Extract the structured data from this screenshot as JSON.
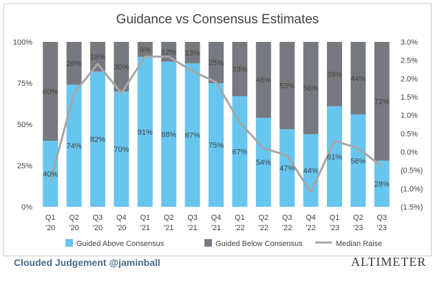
{
  "chart_data": {
    "type": "bar",
    "title": "Guidance vs Consensus Estimates",
    "categories": [
      [
        "Q1",
        "'20"
      ],
      [
        "Q2",
        "'20"
      ],
      [
        "Q3",
        "'20"
      ],
      [
        "Q4",
        "'20"
      ],
      [
        "Q1",
        "'21"
      ],
      [
        "Q2",
        "'21"
      ],
      [
        "Q3",
        "'21"
      ],
      [
        "Q4",
        "'21"
      ],
      [
        "Q1",
        "'22"
      ],
      [
        "Q2",
        "'22"
      ],
      [
        "Q3",
        "'22"
      ],
      [
        "Q4",
        "'22"
      ],
      [
        "Q1",
        "'23"
      ],
      [
        "Q2",
        "'23"
      ],
      [
        "Q3",
        "'23"
      ]
    ],
    "stacked": true,
    "series": [
      {
        "name": "Guided Above Consensus",
        "axis": "left",
        "color": "#67c6f0",
        "values": [
          40,
          74,
          82,
          70,
          91,
          88,
          87,
          75,
          67,
          54,
          47,
          44,
          61,
          56,
          28
        ]
      },
      {
        "name": "Guided Below Consensus",
        "axis": "left",
        "color": "#767a80",
        "values": [
          60,
          26,
          18,
          30,
          9,
          12,
          13,
          25,
          33,
          46,
          53,
          56,
          39,
          44,
          72
        ]
      },
      {
        "name": "Median Raise",
        "type": "line",
        "axis": "right",
        "color": "#a6a6a6",
        "values": [
          -0.8,
          1.6,
          2.4,
          1.6,
          2.6,
          2.6,
          2.2,
          1.9,
          0.8,
          0.1,
          -0.1,
          -1.1,
          0.3,
          0.1,
          -0.4
        ]
      }
    ],
    "y_left": {
      "ylim": [
        0,
        100
      ],
      "ticks": [
        "0%",
        "25%",
        "50%",
        "75%",
        "100%"
      ]
    },
    "y_right": {
      "ylim": [
        -1.5,
        3.0
      ],
      "ticks": [
        "(1.5%)",
        "(1.0%)",
        "(0.5%)",
        "0.0%",
        "0.5%",
        "1.0%",
        "1.5%",
        "2.0%",
        "2.5%",
        "3.0%"
      ]
    },
    "legend_position": "bottom",
    "grid": false
  },
  "footer": {
    "credit": "Clouded Judgement @jaminball",
    "brand": "ALTIMETER"
  }
}
